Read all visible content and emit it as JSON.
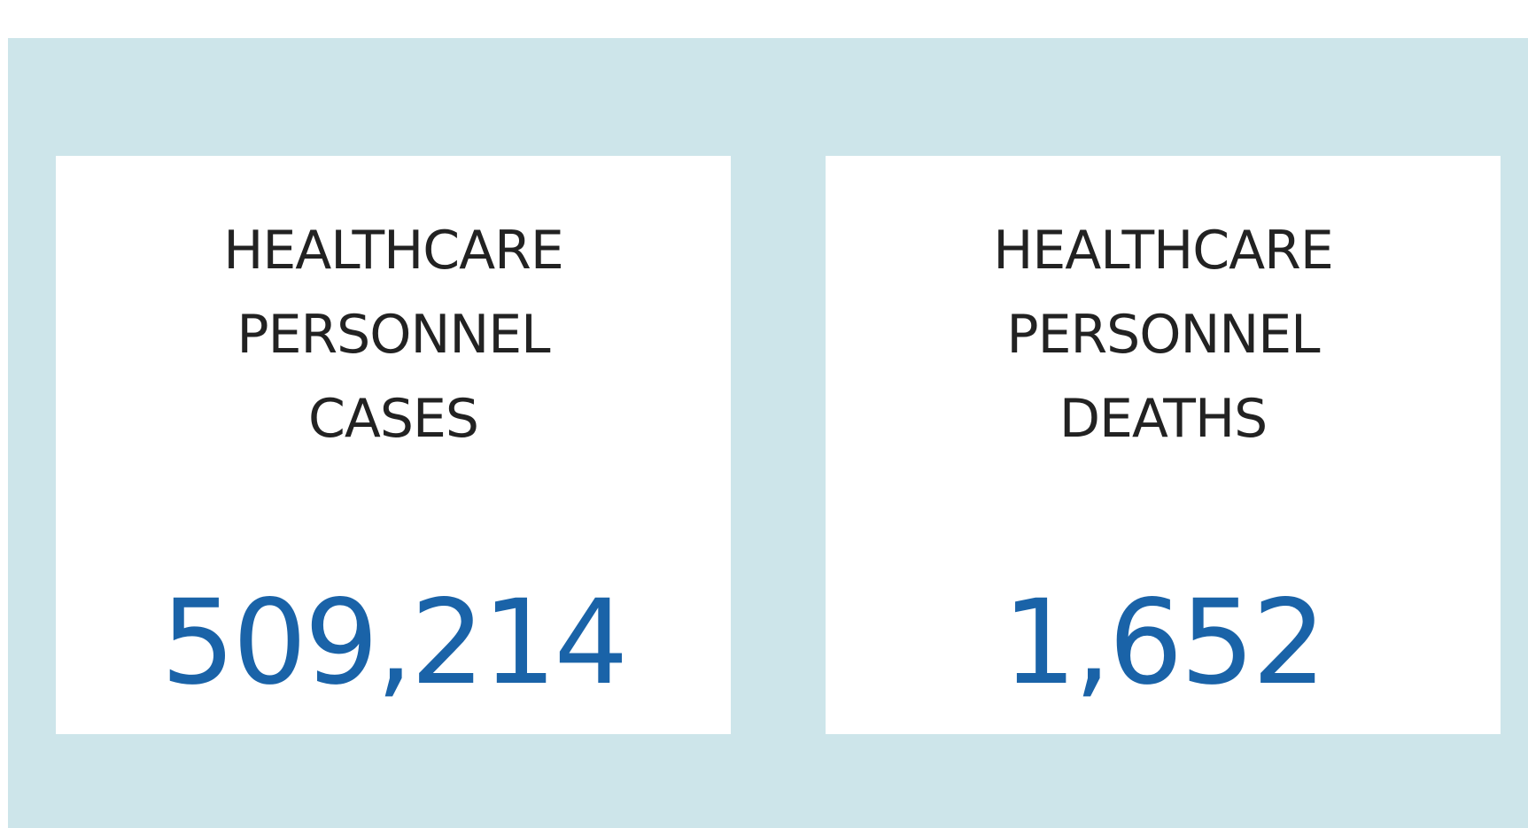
{
  "cards": [
    {
      "title": "HEALTHCARE PERSONNEL CASES",
      "value": "509,214"
    },
    {
      "title": "HEALTHCARE PERSONNEL DEATHS",
      "value": "1,652"
    }
  ]
}
